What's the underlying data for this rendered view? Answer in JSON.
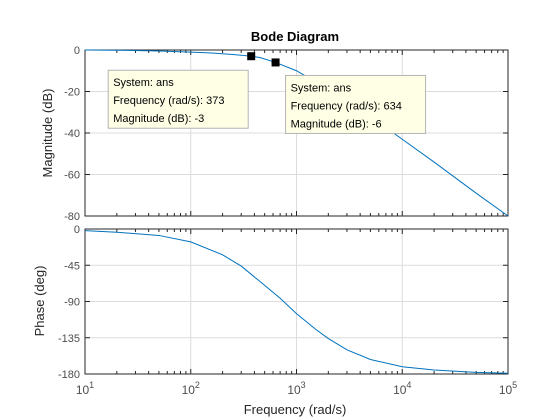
{
  "chart_data": {
    "type": "line",
    "title": "Bode Diagram",
    "xlabel": "Frequency  (rad/s)",
    "xscale": "log",
    "xlim": [
      10,
      100000
    ],
    "x_ticks": [
      {
        "base": "10",
        "exp": "1"
      },
      {
        "base": "10",
        "exp": "2"
      },
      {
        "base": "10",
        "exp": "3"
      },
      {
        "base": "10",
        "exp": "4"
      },
      {
        "base": "10",
        "exp": "5"
      }
    ],
    "line_color": "#0072bd",
    "panels": [
      {
        "id": "magnitude",
        "ylabel": "Magnitude (dB)",
        "ylim": [
          -80,
          0
        ],
        "yticks": [
          "0",
          "-20",
          "-40",
          "-60",
          "-80"
        ],
        "series": [
          {
            "x": [
              10,
              20,
              50,
              100,
              150,
              200,
              250,
              300,
              373,
              450,
              634,
              1000,
              2000,
              3000,
              5000,
              10000,
              20000,
              50000,
              100000
            ],
            "y": [
              -0.02,
              -0.1,
              -0.5,
              -1.0,
              -1.4,
              -1.8,
              -2.2,
              -2.5,
              -3.0,
              -3.6,
              -6.0,
              -10.0,
              -19.0,
              -24.0,
              -32.0,
              -43.0,
              -54.0,
              -69.0,
              -80.0
            ]
          }
        ],
        "datatips": [
          {
            "x": 373,
            "y": -3,
            "lines": [
              "System: ans",
              "Frequency (rad/s): 373",
              "Magnitude (dB): -3"
            ]
          },
          {
            "x": 634,
            "y": -6,
            "lines": [
              "System: ans",
              "Frequency (rad/s): 634",
              "Magnitude (dB): -6"
            ]
          }
        ]
      },
      {
        "id": "phase",
        "ylabel": "Phase (deg)",
        "ylim": [
          -180,
          0
        ],
        "yticks": [
          "0",
          "-45",
          "-90",
          "-135",
          "-180"
        ],
        "series": [
          {
            "x": [
              10,
              20,
              50,
              100,
              200,
              300,
              500,
              700,
              1000,
              1500,
              2000,
              3000,
              5000,
              10000,
              20000,
              50000,
              100000
            ],
            "y": [
              -2,
              -4,
              -8,
              -16,
              -32,
              -46,
              -70,
              -86,
              -105,
              -124,
              -136,
              -150,
              -162,
              -171,
              -175,
              -178,
              -179
            ]
          }
        ]
      }
    ]
  }
}
